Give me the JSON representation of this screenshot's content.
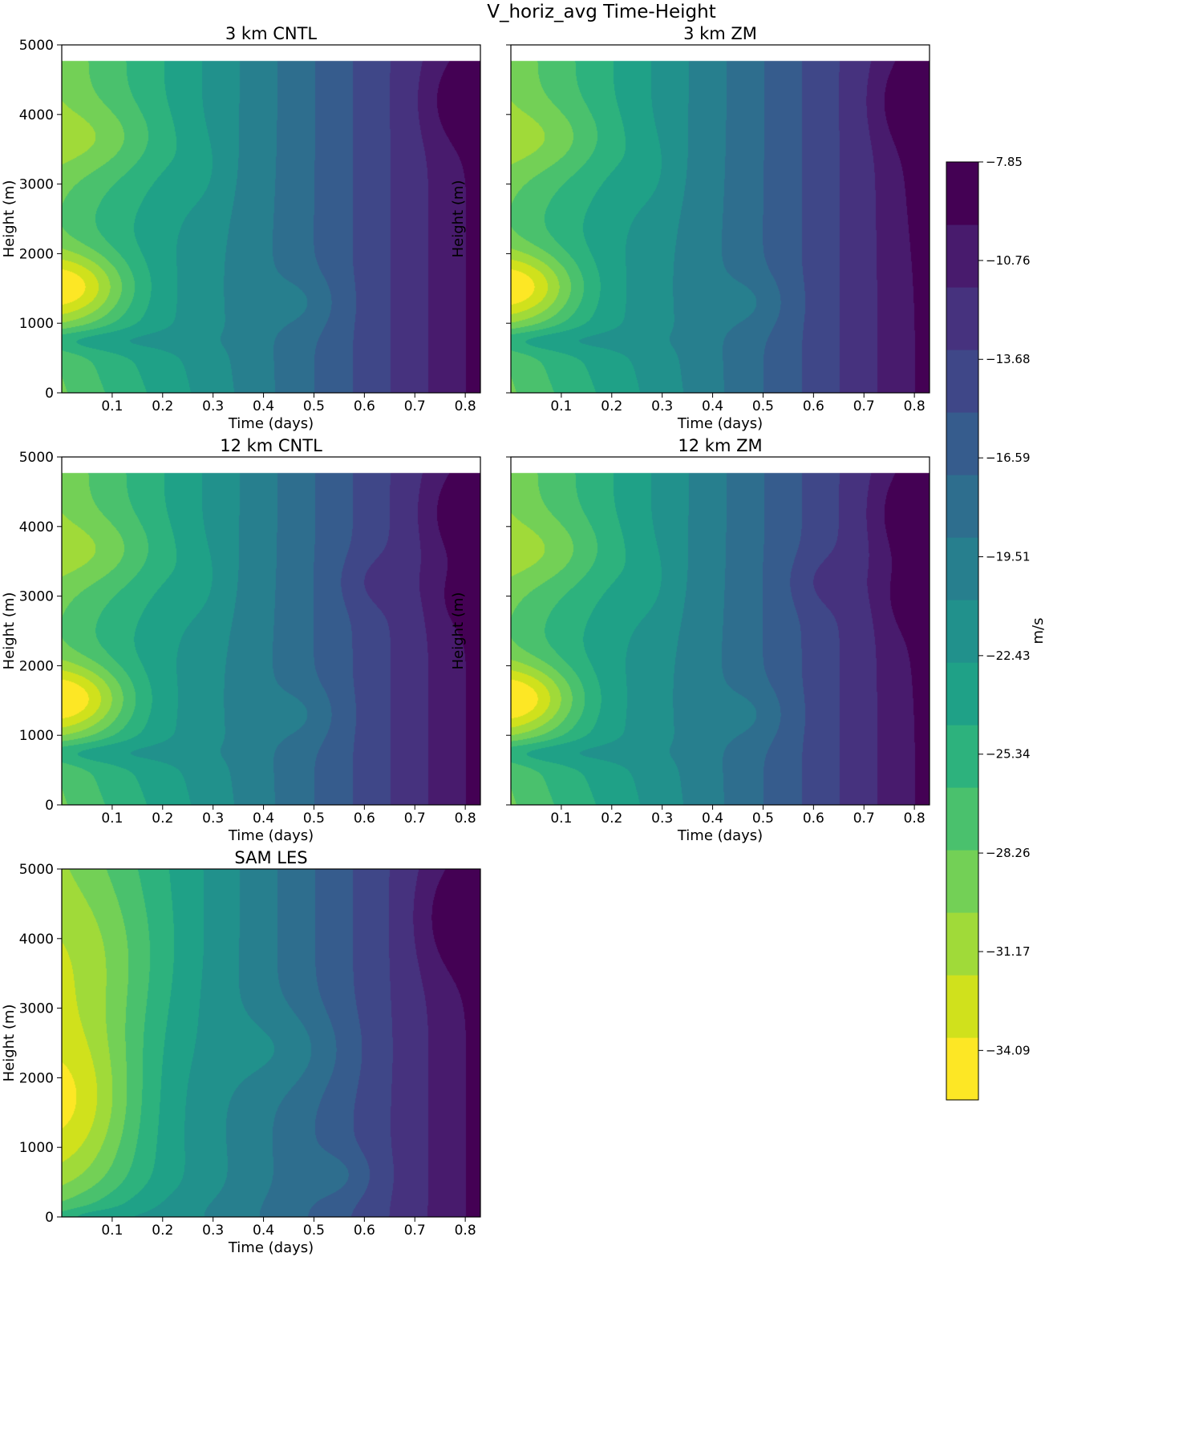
{
  "figure": {
    "title": "V_horiz_avg Time-Height"
  },
  "colors": {
    "viridis": [
      "#fde725",
      "#d0e11c",
      "#a0da39",
      "#73d056",
      "#4ac16d",
      "#2db27d",
      "#1fa187",
      "#21918c",
      "#277f8e",
      "#2e6e8e",
      "#365c8d",
      "#3f4788",
      "#46327e",
      "#481b6d",
      "#440154"
    ]
  },
  "colorbar": {
    "label": "m/s",
    "levels_min": -35.55,
    "levels_max": -7.85,
    "ticks": [
      -7.85,
      -10.76,
      -13.68,
      -16.59,
      -19.51,
      -22.43,
      -25.34,
      -28.26,
      -31.17,
      -34.09
    ],
    "tick_labels": [
      "−7.85",
      "−10.76",
      "−13.68",
      "−16.59",
      "−19.51",
      "−22.43",
      "−25.34",
      "−28.26",
      "−31.17",
      "−34.09"
    ]
  },
  "chart_data": [
    {
      "type": "heatmap",
      "title": "3 km CNTL",
      "xlabel": "Time (days)",
      "ylabel": "Height (m)",
      "xlim": [
        0.0,
        0.83
      ],
      "ylim": [
        0,
        5000
      ],
      "data_top": 4775,
      "variant": "cntl",
      "show_ylabel": true,
      "xticks": [
        0.1,
        0.2,
        0.3,
        0.4,
        0.5,
        0.6,
        0.7,
        0.8
      ],
      "xtick_labels": [
        "0.1",
        "0.2",
        "0.3",
        "0.4",
        "0.5",
        "0.6",
        "0.7",
        "0.8"
      ],
      "yticks": [
        0,
        1000,
        2000,
        3000,
        4000,
        5000
      ],
      "ytick_labels": [
        "0",
        "1000",
        "2000",
        "3000",
        "4000",
        "5000"
      ]
    },
    {
      "type": "heatmap",
      "title": "3 km ZM",
      "xlabel": "Time (days)",
      "ylabel": "Height (m)",
      "xlim": [
        0.0,
        0.83
      ],
      "ylim": [
        0,
        5000
      ],
      "data_top": 4775,
      "variant": "zm",
      "show_ylabel": true,
      "xticks": [
        0.1,
        0.2,
        0.3,
        0.4,
        0.5,
        0.6,
        0.7,
        0.8
      ],
      "xtick_labels": [
        "0.1",
        "0.2",
        "0.3",
        "0.4",
        "0.5",
        "0.6",
        "0.7",
        "0.8"
      ],
      "yticks": [
        0,
        1000,
        2000,
        3000,
        4000,
        5000
      ],
      "ytick_labels": []
    },
    {
      "type": "heatmap",
      "title": "12 km CNTL",
      "xlabel": "Time (days)",
      "ylabel": "Height (m)",
      "xlim": [
        0.0,
        0.83
      ],
      "ylim": [
        0,
        5000
      ],
      "data_top": 4775,
      "variant": "cntl12",
      "show_ylabel": true,
      "xticks": [
        0.1,
        0.2,
        0.3,
        0.4,
        0.5,
        0.6,
        0.7,
        0.8
      ],
      "xtick_labels": [
        "0.1",
        "0.2",
        "0.3",
        "0.4",
        "0.5",
        "0.6",
        "0.7",
        "0.8"
      ],
      "yticks": [
        0,
        1000,
        2000,
        3000,
        4000,
        5000
      ],
      "ytick_labels": [
        "0",
        "1000",
        "2000",
        "3000",
        "4000",
        "5000"
      ]
    },
    {
      "type": "heatmap",
      "title": "12 km ZM",
      "xlabel": "Time (days)",
      "ylabel": "Height (m)",
      "xlim": [
        0.0,
        0.83
      ],
      "ylim": [
        0,
        5000
      ],
      "data_top": 4775,
      "variant": "zm12",
      "show_ylabel": true,
      "xticks": [
        0.1,
        0.2,
        0.3,
        0.4,
        0.5,
        0.6,
        0.7,
        0.8
      ],
      "xtick_labels": [
        "0.1",
        "0.2",
        "0.3",
        "0.4",
        "0.5",
        "0.6",
        "0.7",
        "0.8"
      ],
      "yticks": [
        0,
        1000,
        2000,
        3000,
        4000,
        5000
      ],
      "ytick_labels": []
    },
    {
      "type": "heatmap",
      "title": "SAM LES",
      "xlabel": "Time (days)",
      "ylabel": "Height (m)",
      "xlim": [
        0.0,
        0.83
      ],
      "ylim": [
        0,
        5000
      ],
      "data_top": 5000,
      "variant": "les",
      "show_ylabel": true,
      "xticks": [
        0.1,
        0.2,
        0.3,
        0.4,
        0.5,
        0.6,
        0.7,
        0.8
      ],
      "xtick_labels": [
        "0.1",
        "0.2",
        "0.3",
        "0.4",
        "0.5",
        "0.6",
        "0.7",
        "0.8"
      ],
      "yticks": [
        0,
        1000,
        2000,
        3000,
        4000,
        5000
      ],
      "ytick_labels": [
        "0",
        "1000",
        "2000",
        "3000",
        "4000",
        "5000"
      ]
    }
  ]
}
